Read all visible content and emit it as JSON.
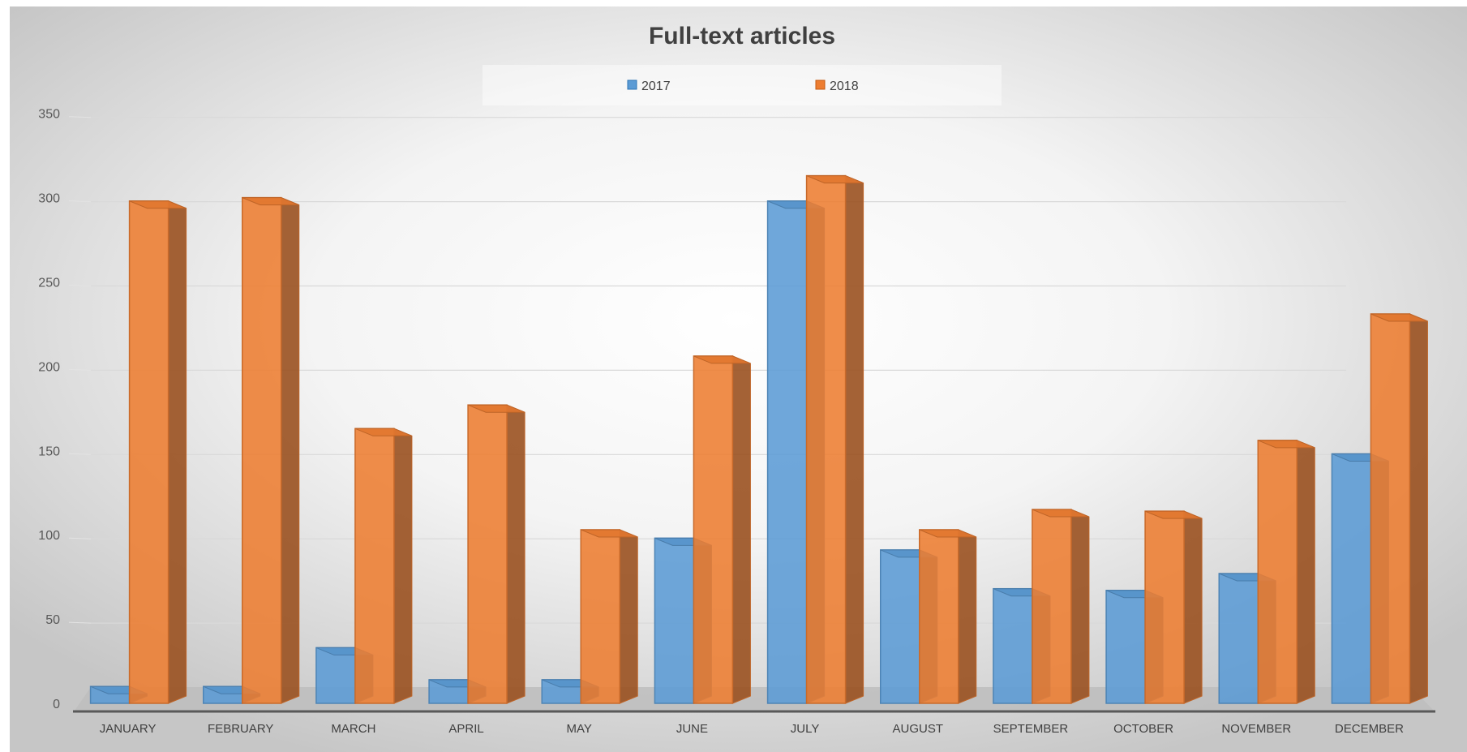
{
  "chart_data": {
    "type": "bar",
    "title": "Full-text articles",
    "legend_position": "top-center",
    "grid": true,
    "ylim": [
      0,
      350
    ],
    "yticks": [
      0,
      50,
      100,
      150,
      200,
      250,
      300,
      350
    ],
    "categories": [
      "JANUARY",
      "FEBRUARY",
      "MARCH",
      "APRIL",
      "MAY",
      "JUNE",
      "JULY",
      "AUGUST",
      "SEPTEMBER",
      "OCTOBER",
      "NOVEMBER",
      "DECEMBER"
    ],
    "series": [
      {
        "name": "2017",
        "color": "#5B9BD5",
        "values": [
          10,
          10,
          33,
          14,
          14,
          98,
          298,
          91,
          68,
          67,
          77,
          148
        ]
      },
      {
        "name": "2018",
        "color": "#ED7D31",
        "values": [
          298,
          300,
          163,
          177,
          103,
          206,
          313,
          103,
          115,
          114,
          156,
          231
        ]
      }
    ]
  }
}
